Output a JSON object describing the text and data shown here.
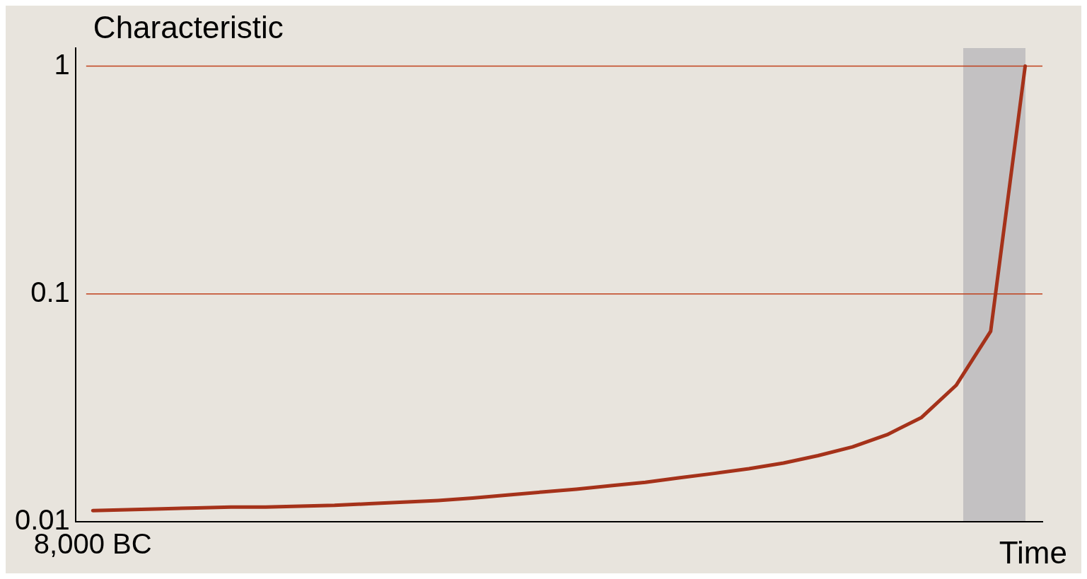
{
  "chart_data": {
    "type": "line",
    "ylabel": "Characteristic",
    "xlabel": "Time",
    "log": "y",
    "categories": [
      "8,000 BC",
      null,
      null,
      null,
      null,
      null,
      null,
      null,
      null,
      null,
      null,
      null,
      null,
      null,
      null,
      null,
      null,
      null,
      null,
      null,
      null,
      null,
      null,
      null,
      null,
      null,
      null,
      null
    ],
    "series": [
      {
        "color": "#a5321a",
        "values": [
          0.0112,
          0.0113,
          0.0114,
          0.0115,
          0.0116,
          0.0116,
          0.0117,
          0.0118,
          0.012,
          0.0122,
          0.0124,
          0.0127,
          0.0131,
          0.0135,
          0.0139,
          0.0144,
          0.0149,
          0.0156,
          0.0163,
          0.0171,
          0.0181,
          0.0195,
          0.0213,
          0.0241,
          0.0287,
          0.0397,
          0.0685,
          1
        ]
      }
    ],
    "ylim": [
      0.01,
      1.2
    ],
    "yticks": [
      0.01,
      0.1,
      1
    ],
    "ref_lines": [
      {
        "axis": "y",
        "value": 0.1,
        "color": "#c0401c"
      },
      {
        "axis": "y",
        "value": 1,
        "color": "#c0401c"
      }
    ]
  }
}
